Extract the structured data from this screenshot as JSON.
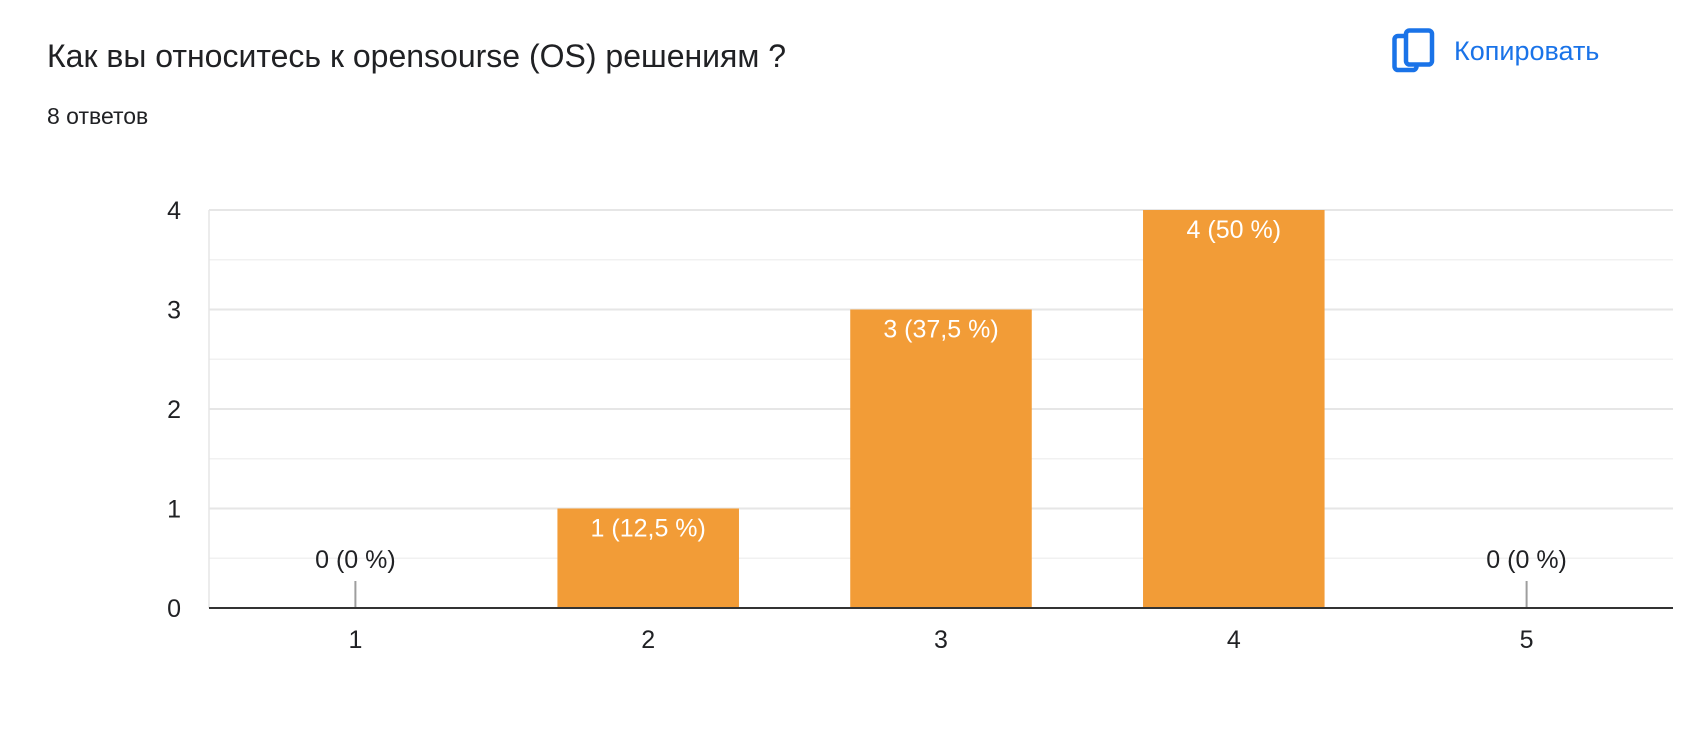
{
  "question": {
    "title": "Как вы относитесь к opensourse (OS) решениям ?",
    "responses": "8 ответов"
  },
  "toolbar": {
    "copy_label": "Копировать",
    "copy_icon": "copy-icon"
  },
  "colors": {
    "bar": "#f29c37",
    "accent": "#1a73e8",
    "grid": "#ececec",
    "axis": "#333333",
    "text": "#202124"
  },
  "chart_data": {
    "type": "bar",
    "categories": [
      "1",
      "2",
      "3",
      "4",
      "5"
    ],
    "values": [
      0,
      1,
      3,
      4,
      0
    ],
    "data_labels": [
      "0 (0 %)",
      "1 (12,5 %)",
      "3 (37,5 %)",
      "4 (50 %)",
      "0 (0 %)"
    ],
    "yticks": [
      0,
      1,
      2,
      3,
      4
    ],
    "ylim": [
      0,
      4
    ],
    "title": "",
    "xlabel": "",
    "ylabel": "",
    "grid": true,
    "legend": "none"
  }
}
